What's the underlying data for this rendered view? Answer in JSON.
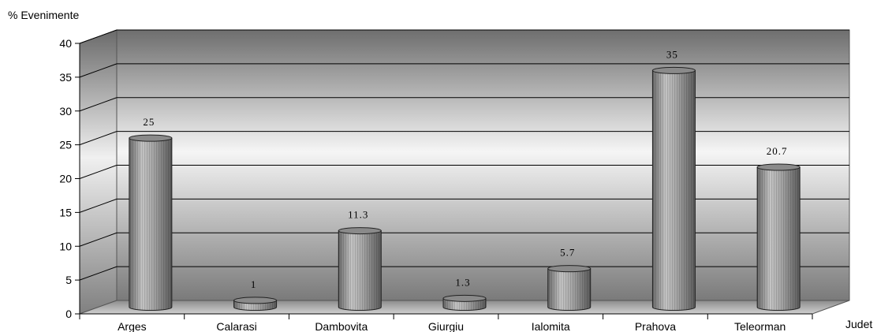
{
  "chart_data": {
    "type": "bar",
    "bar_style": "3d-cylinder",
    "ylabel": "% Evenimente",
    "xlabel": "Judet",
    "categories": [
      "Arges",
      "Calarasi",
      "Dambovita",
      "Giurgiu",
      "Ialomita",
      "Prahova",
      "Teleorman"
    ],
    "values": [
      25,
      1,
      11.3,
      1.3,
      5.7,
      35,
      20.7
    ],
    "data_labels": [
      "25",
      "1",
      "11.3",
      "1.3",
      "5.7",
      "35",
      "20.7"
    ],
    "yticks": [
      "0",
      "5",
      "10",
      "15",
      "20",
      "25",
      "30",
      "35",
      "40"
    ],
    "ylim": [
      0,
      40
    ],
    "grid": true,
    "legend": "none",
    "colors": {
      "bar": "#9c9c9c",
      "bar_top": "#8a8a8a",
      "wall_dark": "#6e6e6e",
      "wall_light": "#f5f5f5",
      "floor": "#b0b0b0"
    }
  }
}
